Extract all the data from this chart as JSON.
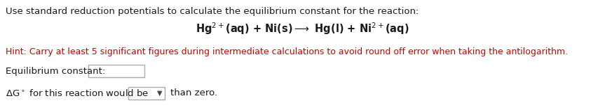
{
  "line1": "Use standard reduction potentials to calculate the equilibrium constant for the reaction:",
  "reaction_mathtext": "Hg$^{2+}$(aq) + Ni(s)—→ Hg(l) + Ni$^{2+}$(aq)",
  "hint": "Hint: Carry at least 5 significant figures during intermediate calculations to avoid round off error when taking the antilogarithm.",
  "label_eq": "Equilibrium constant:",
  "label_ag": "ΔG° for this reaction would be",
  "label_than": "than zero.",
  "bg_color": "#ffffff",
  "text_color": "#1a1a1a",
  "hint_color": "#cc0000",
  "box_edge_color": "#aaaaaa",
  "font_size_main": 9.5,
  "font_size_reaction": 10.5,
  "font_size_hint": 9.0,
  "fig_width": 8.63,
  "fig_height": 1.58,
  "dpi": 100
}
